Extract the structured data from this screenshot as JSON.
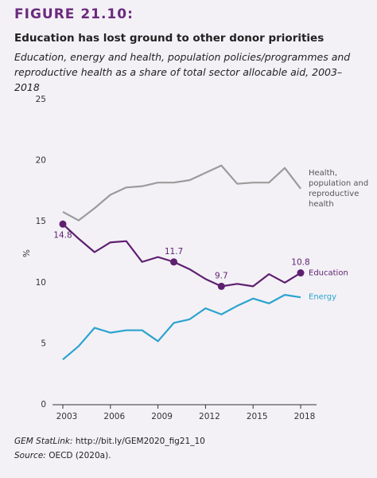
{
  "chart_data": {
    "type": "line",
    "figure_label": "FIGURE 21.10:",
    "title": "Education has lost ground to other donor priorities",
    "subtitle": "Education, energy and health, population policies/programmes and reproductive health as a share of total sector allocable aid, 2003–2018",
    "y_label": "%",
    "x": [
      2003,
      2004,
      2005,
      2006,
      2007,
      2008,
      2009,
      2010,
      2011,
      2012,
      2013,
      2014,
      2015,
      2016,
      2017,
      2018
    ],
    "xlim": [
      2003,
      2018
    ],
    "xticks": [
      2003,
      2006,
      2009,
      2012,
      2015,
      2018
    ],
    "ylim": [
      0,
      25
    ],
    "yticks": [
      0,
      5,
      10,
      15,
      20,
      25
    ],
    "series": [
      {
        "name": "Health, population and reproductive health",
        "color": "#9b9b9b",
        "values": [
          15.8,
          15.1,
          16.1,
          17.2,
          17.8,
          17.9,
          18.2,
          18.2,
          18.4,
          19.0,
          19.6,
          18.1,
          18.2,
          18.2,
          19.4,
          17.7
        ]
      },
      {
        "name": "Education",
        "color": "#5e1f70",
        "values": [
          14.8,
          13.6,
          12.5,
          13.3,
          13.4,
          11.7,
          12.1,
          11.7,
          11.1,
          10.3,
          9.7,
          9.9,
          9.7,
          10.7,
          10.0,
          10.8
        ],
        "value_labels": [
          "14.8",
          null,
          null,
          null,
          null,
          null,
          null,
          "11.7",
          null,
          null,
          "9.7",
          null,
          null,
          null,
          null,
          "10.8"
        ]
      },
      {
        "name": "Energy",
        "color": "#2ba3cf",
        "values": [
          3.7,
          4.8,
          6.3,
          5.9,
          6.1,
          6.1,
          5.2,
          6.7,
          7.0,
          7.9,
          7.4,
          8.1,
          8.7,
          8.3,
          9.0,
          8.8
        ]
      }
    ],
    "statlink_label": "GEM StatLink:",
    "statlink_url": "http://bit.ly/GEM2020_fig21_10",
    "source_label": "Source:",
    "source": "OECD (2020a)."
  }
}
